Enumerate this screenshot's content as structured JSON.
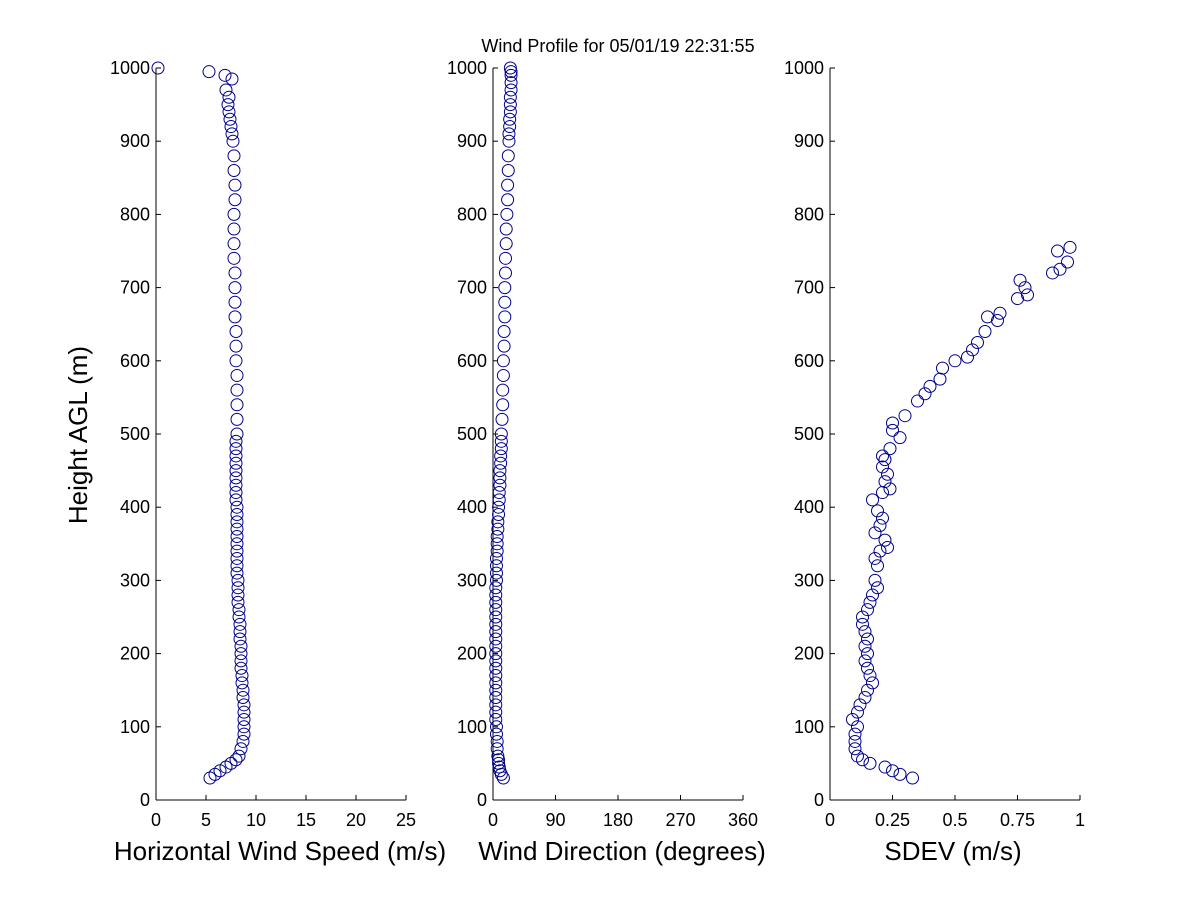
{
  "figure": {
    "title": "Wind Profile for  05/01/19 22:31:55",
    "ylabel": "Height AGL (m)",
    "marker_color": "#00008b",
    "axis_color": "#000000",
    "background": "#ffffff"
  },
  "chart_data": [
    {
      "type": "scatter",
      "xlabel": "Horizontal Wind Speed (m/s)",
      "ylabel": "Height AGL (m)",
      "xlim": [
        0,
        25
      ],
      "ylim": [
        0,
        1000
      ],
      "xticks": [
        "0",
        "5",
        "10",
        "15",
        "20",
        "25"
      ],
      "yticks": [
        "0",
        "100",
        "200",
        "300",
        "400",
        "500",
        "600",
        "700",
        "800",
        "900",
        "1000"
      ],
      "series": [
        {
          "marker": "circle",
          "x": [
            5.4,
            5.9,
            6.4,
            7.0,
            7.5,
            8.0,
            8.3,
            8.5,
            8.7,
            8.8,
            8.8,
            8.8,
            8.8,
            8.8,
            8.7,
            8.7,
            8.6,
            8.6,
            8.5,
            8.5,
            8.5,
            8.5,
            8.4,
            8.4,
            8.4,
            8.3,
            8.3,
            8.2,
            8.2,
            8.2,
            8.2,
            8.1,
            8.1,
            8.1,
            8.1,
            8.1,
            8.1,
            8.1,
            8.1,
            8.1,
            8.1,
            8.0,
            8.0,
            8.0,
            8.0,
            8.0,
            8.0,
            8.0,
            8.0,
            8.0,
            8.1,
            8.1,
            8.1,
            8.1,
            8.1,
            8.0,
            8.0,
            8.0,
            7.9,
            7.9,
            7.9,
            7.9,
            7.8,
            7.8,
            7.8,
            7.8,
            7.9,
            7.9,
            7.8,
            7.8,
            7.7,
            7.6,
            7.5,
            7.4,
            7.3,
            7.2,
            7.3,
            7.0,
            7.6,
            6.9,
            5.3,
            0.2
          ],
          "y": [
            30,
            35,
            40,
            45,
            50,
            55,
            60,
            70,
            80,
            90,
            100,
            110,
            120,
            130,
            140,
            150,
            160,
            170,
            180,
            190,
            200,
            210,
            220,
            230,
            240,
            250,
            260,
            270,
            280,
            290,
            300,
            310,
            320,
            330,
            340,
            350,
            360,
            370,
            380,
            390,
            400,
            410,
            420,
            430,
            440,
            450,
            460,
            470,
            480,
            490,
            500,
            520,
            540,
            560,
            580,
            600,
            620,
            640,
            660,
            680,
            700,
            720,
            740,
            760,
            780,
            800,
            820,
            840,
            860,
            880,
            900,
            910,
            920,
            930,
            940,
            950,
            960,
            970,
            985,
            990,
            995,
            1000
          ]
        }
      ]
    },
    {
      "type": "scatter",
      "xlabel": "Wind Direction (degrees)",
      "ylabel": "",
      "xlim": [
        0,
        360
      ],
      "ylim": [
        0,
        1000
      ],
      "xticks": [
        "0",
        "90",
        "180",
        "270",
        "360"
      ],
      "yticks": [
        "0",
        "100",
        "200",
        "300",
        "400",
        "500",
        "600",
        "700",
        "800",
        "900",
        "1000"
      ],
      "series": [
        {
          "marker": "circle",
          "x": [
            15,
            12,
            10,
            9,
            8,
            8,
            7,
            6,
            6,
            5,
            5,
            4,
            4,
            4,
            4,
            4,
            4,
            4,
            4,
            4,
            4,
            4,
            4,
            4,
            4,
            4,
            4,
            4,
            4,
            4,
            5,
            5,
            5,
            5,
            6,
            6,
            6,
            7,
            7,
            8,
            8,
            9,
            9,
            10,
            10,
            10,
            11,
            11,
            12,
            12,
            12,
            13,
            14,
            14,
            15,
            15,
            16,
            16,
            17,
            17,
            17,
            18,
            18,
            19,
            19,
            20,
            21,
            21,
            22,
            22,
            23,
            23,
            24,
            24,
            25,
            25,
            25,
            26,
            26,
            26,
            26,
            25
          ],
          "y": [
            30,
            35,
            40,
            45,
            50,
            55,
            60,
            70,
            80,
            90,
            100,
            110,
            120,
            130,
            140,
            150,
            160,
            170,
            180,
            190,
            200,
            210,
            220,
            230,
            240,
            250,
            260,
            270,
            280,
            290,
            300,
            310,
            320,
            330,
            340,
            350,
            360,
            370,
            380,
            390,
            400,
            410,
            420,
            430,
            440,
            450,
            460,
            470,
            480,
            490,
            500,
            520,
            540,
            560,
            580,
            600,
            620,
            640,
            660,
            680,
            700,
            720,
            740,
            760,
            780,
            800,
            820,
            840,
            860,
            880,
            900,
            910,
            920,
            930,
            940,
            950,
            960,
            970,
            980,
            990,
            995,
            1000
          ]
        }
      ]
    },
    {
      "type": "scatter",
      "xlabel": "SDEV  (m/s)",
      "ylabel": "",
      "xlim": [
        0,
        1
      ],
      "ylim": [
        0,
        1000
      ],
      "xticks": [
        "0",
        "0.25",
        "0.5",
        "0.75",
        "1"
      ],
      "yticks": [
        "0",
        "100",
        "200",
        "300",
        "400",
        "500",
        "600",
        "700",
        "800",
        "900",
        "1000"
      ],
      "series": [
        {
          "marker": "circle",
          "x": [
            0.33,
            0.28,
            0.25,
            0.22,
            0.16,
            0.13,
            0.11,
            0.1,
            0.1,
            0.1,
            0.11,
            0.09,
            0.11,
            0.12,
            0.14,
            0.15,
            0.17,
            0.16,
            0.15,
            0.14,
            0.15,
            0.14,
            0.15,
            0.14,
            0.13,
            0.13,
            0.15,
            0.16,
            0.17,
            0.19,
            0.18,
            0.19,
            0.18,
            0.2,
            0.23,
            0.22,
            0.18,
            0.2,
            0.21,
            0.19,
            0.17,
            0.21,
            0.24,
            0.22,
            0.23,
            0.21,
            0.22,
            0.21,
            0.24,
            0.28,
            0.25,
            0.25,
            0.3,
            0.35,
            0.38,
            0.4,
            0.44,
            0.45,
            0.5,
            0.55,
            0.57,
            0.59,
            0.62,
            0.67,
            0.63,
            0.68,
            0.75,
            0.79,
            0.78,
            0.76,
            0.89,
            0.92,
            0.95,
            0.91,
            0.96
          ],
          "y": [
            30,
            35,
            40,
            45,
            50,
            55,
            60,
            70,
            80,
            90,
            100,
            110,
            120,
            130,
            140,
            150,
            160,
            170,
            180,
            190,
            200,
            210,
            220,
            230,
            240,
            250,
            260,
            270,
            280,
            290,
            300,
            320,
            330,
            340,
            345,
            355,
            365,
            375,
            385,
            395,
            410,
            420,
            425,
            435,
            445,
            455,
            465,
            470,
            480,
            495,
            505,
            515,
            525,
            545,
            555,
            565,
            575,
            590,
            600,
            605,
            615,
            625,
            640,
            655,
            660,
            665,
            685,
            690,
            700,
            710,
            720,
            725,
            735,
            750,
            755
          ]
        }
      ]
    }
  ]
}
